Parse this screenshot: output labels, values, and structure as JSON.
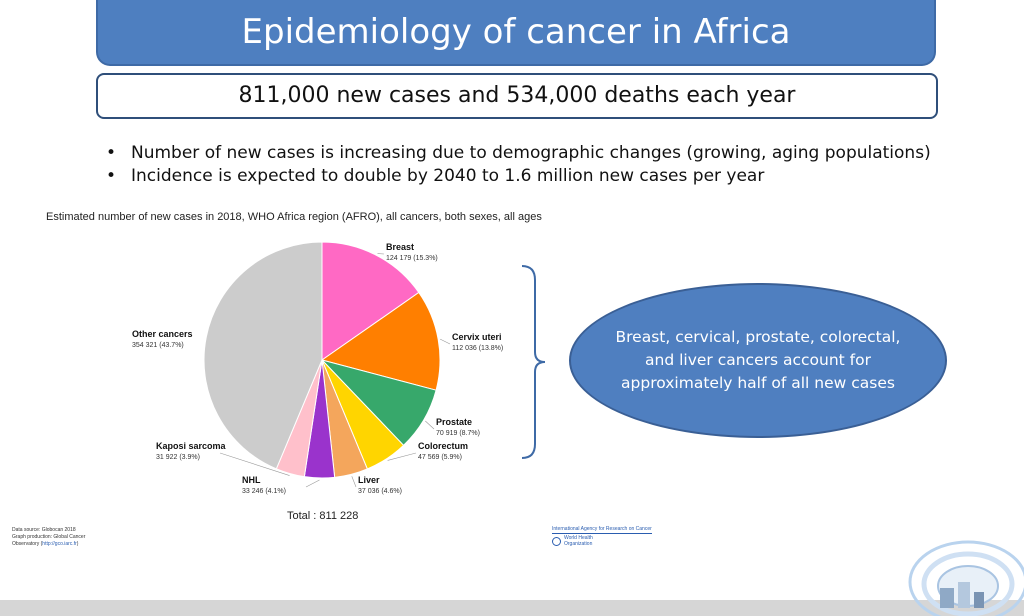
{
  "slide": {
    "title": "Epidemiology of cancer in Africa",
    "subtitle": "811,000 new cases and 534,000 deaths each year",
    "bullets": [
      "Number of new cases is increasing due to demographic changes (growing, aging populations)",
      "Incidence is expected to double by 2040 to 1.6 million new cases per year"
    ],
    "callout": "Breast, cervical, prostate, colorectal, and liver cancers account for approximately half of all new cases",
    "credits": {
      "line1": "Data source: Globocan 2018",
      "line2": "Graph production: Global Cancer",
      "line3_prefix": "Observatory (",
      "line3_link": "http://gco.iarc.fr",
      "line3_suffix": ")"
    },
    "iarc_label": "International Agency for Research on Cancer",
    "who_line1": "World Health",
    "who_line2": "Organization"
  },
  "chart_data": {
    "type": "pie",
    "title": "Estimated number of new cases in 2018, WHO Africa region (AFRO), all cancers, both sexes, all ages",
    "total_label": "Total : 811 228",
    "slices": [
      {
        "name": "Breast",
        "value": 124179,
        "label": "124 179 (15.3%)",
        "color": "#ff69c4"
      },
      {
        "name": "Cervix uteri",
        "value": 112036,
        "label": "112 036 (13.8%)",
        "color": "#ff7f00"
      },
      {
        "name": "Prostate",
        "value": 70919,
        "label": "70 919 (8.7%)",
        "color": "#37a86b"
      },
      {
        "name": "Colorectum",
        "value": 47569,
        "label": "47 569 (5.9%)",
        "color": "#ffd500"
      },
      {
        "name": "Liver",
        "value": 37036,
        "label": "37 036 (4.6%)",
        "color": "#f4a65c"
      },
      {
        "name": "NHL",
        "value": 33246,
        "label": "33 246 (4.1%)",
        "color": "#9a33cc"
      },
      {
        "name": "Kaposi sarcoma",
        "value": 31922,
        "label": "31 922 (3.9%)",
        "color": "#ffc0cb"
      },
      {
        "name": "Other cancers",
        "value": 354321,
        "label": "354 321 (43.7%)",
        "color": "#cccccc"
      }
    ]
  }
}
